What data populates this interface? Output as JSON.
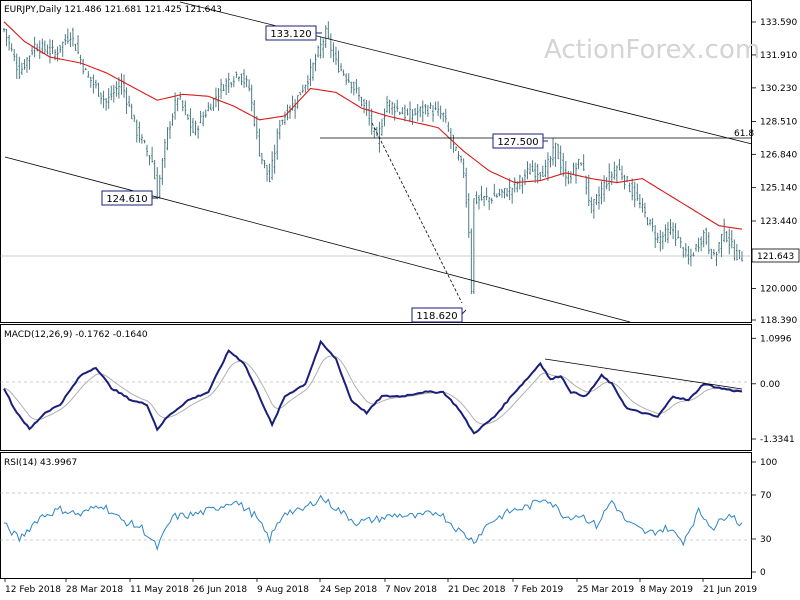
{
  "header": {
    "price": "EURJPY,Daily  121.486 121.681 121.425 121.643",
    "macd": "MACD(12,26,9) -0.1762 -0.1640",
    "rsi": "RSI(14) 43.9967"
  },
  "watermark": "ActionForex.com",
  "colors": {
    "candle": "#3b6f7a",
    "ma": "#d81b1b",
    "macd": "#1a1f7a",
    "signal": "#b0b0b0",
    "rsi": "#2f86c6",
    "trend": "#000000"
  },
  "chart_data": [
    {
      "type": "candlestick",
      "y_axis": {
        "min": 118.39,
        "max": 134.4,
        "ticks": [
          {
            "value": 133.59,
            "label": "133.590"
          },
          {
            "value": 131.91,
            "label": "131.910"
          },
          {
            "value": 130.23,
            "label": "130.230"
          },
          {
            "value": 128.51,
            "label": "128.510"
          },
          {
            "value": 126.84,
            "label": "126.840"
          },
          {
            "value": 125.14,
            "label": "125.140"
          },
          {
            "value": 123.44,
            "label": "123.440"
          },
          {
            "value": 120.0,
            "label": "120.000"
          },
          {
            "value": 118.39,
            "label": "118.390"
          }
        ]
      },
      "x_axis": {
        "labels": [
          "12 Feb 2018",
          "28 Mar 2018",
          "11 May 2018",
          "26 Jun 2018",
          "9 Aug 2018",
          "24 Sep 2018",
          "7 Nov 2018",
          "21 Dec 2018",
          "7 Feb 2019",
          "25 Mar 2019",
          "8 May 2019",
          "21 Jun 2019"
        ]
      },
      "current_price": {
        "value": 121.643,
        "label": "121.643"
      },
      "annotations": [
        {
          "label": "133.120",
          "value": 133.12
        },
        {
          "label": "124.610",
          "value": 124.61
        },
        {
          "label": "118.620",
          "value": 118.62
        },
        {
          "label": "127.500",
          "value": 127.5
        },
        {
          "label": "61.8",
          "value": 127.7
        }
      ],
      "moving_average_path": [
        {
          "i": 0,
          "v": 133.6
        },
        {
          "i": 8,
          "v": 132.6
        },
        {
          "i": 18,
          "v": 131.8
        },
        {
          "i": 30,
          "v": 131.5
        },
        {
          "i": 40,
          "v": 131.0
        },
        {
          "i": 50,
          "v": 130.3
        },
        {
          "i": 60,
          "v": 129.6
        },
        {
          "i": 70,
          "v": 129.9
        },
        {
          "i": 80,
          "v": 129.8
        },
        {
          "i": 90,
          "v": 129.3
        },
        {
          "i": 100,
          "v": 128.6
        },
        {
          "i": 110,
          "v": 128.8
        },
        {
          "i": 120,
          "v": 130.2
        },
        {
          "i": 130,
          "v": 130.0
        },
        {
          "i": 140,
          "v": 129.2
        },
        {
          "i": 150,
          "v": 128.8
        },
        {
          "i": 160,
          "v": 128.5
        },
        {
          "i": 170,
          "v": 128.2
        },
        {
          "i": 180,
          "v": 127.0
        },
        {
          "i": 190,
          "v": 126.0
        },
        {
          "i": 200,
          "v": 125.4
        },
        {
          "i": 210,
          "v": 125.5
        },
        {
          "i": 220,
          "v": 125.9
        },
        {
          "i": 230,
          "v": 125.6
        },
        {
          "i": 240,
          "v": 125.4
        },
        {
          "i": 250,
          "v": 125.6
        },
        {
          "i": 260,
          "v": 124.8
        },
        {
          "i": 270,
          "v": 124.0
        },
        {
          "i": 280,
          "v": 123.2
        },
        {
          "i": 290,
          "v": 123.0
        }
      ]
    },
    {
      "type": "line",
      "name": "MACD(12,26,9)",
      "y_axis": {
        "min": -1.6,
        "max": 1.3,
        "ticks": [
          {
            "value": 1.0996,
            "label": "1.0996"
          },
          {
            "value": 0.0,
            "label": "0.00"
          },
          {
            "value": -1.3341,
            "label": "-1.3341"
          }
        ]
      },
      "macd_path": [
        {
          "i": 0,
          "v": -0.1
        },
        {
          "i": 4,
          "v": -0.6
        },
        {
          "i": 10,
          "v": -1.1
        },
        {
          "i": 16,
          "v": -0.7
        },
        {
          "i": 22,
          "v": -0.5
        },
        {
          "i": 30,
          "v": 0.2
        },
        {
          "i": 36,
          "v": 0.4
        },
        {
          "i": 42,
          "v": -0.1
        },
        {
          "i": 50,
          "v": -0.4
        },
        {
          "i": 56,
          "v": -0.5
        },
        {
          "i": 60,
          "v": -1.1
        },
        {
          "i": 64,
          "v": -0.8
        },
        {
          "i": 72,
          "v": -0.4
        },
        {
          "i": 80,
          "v": -0.2
        },
        {
          "i": 88,
          "v": 0.8
        },
        {
          "i": 94,
          "v": 0.5
        },
        {
          "i": 100,
          "v": -0.3
        },
        {
          "i": 105,
          "v": -1.0
        },
        {
          "i": 110,
          "v": -0.3
        },
        {
          "i": 118,
          "v": 0.0
        },
        {
          "i": 124,
          "v": 1.0
        },
        {
          "i": 130,
          "v": 0.6
        },
        {
          "i": 136,
          "v": -0.4
        },
        {
          "i": 142,
          "v": -0.7
        },
        {
          "i": 148,
          "v": -0.3
        },
        {
          "i": 156,
          "v": -0.3
        },
        {
          "i": 164,
          "v": -0.2
        },
        {
          "i": 172,
          "v": -0.2
        },
        {
          "i": 178,
          "v": -0.6
        },
        {
          "i": 184,
          "v": -1.2
        },
        {
          "i": 192,
          "v": -0.8
        },
        {
          "i": 200,
          "v": -0.2
        },
        {
          "i": 206,
          "v": 0.2
        },
        {
          "i": 210,
          "v": 0.5
        },
        {
          "i": 214,
          "v": 0.1
        },
        {
          "i": 218,
          "v": 0.2
        },
        {
          "i": 222,
          "v": -0.2
        },
        {
          "i": 228,
          "v": -0.3
        },
        {
          "i": 234,
          "v": 0.2
        },
        {
          "i": 238,
          "v": 0.0
        },
        {
          "i": 244,
          "v": -0.6
        },
        {
          "i": 250,
          "v": -0.7
        },
        {
          "i": 256,
          "v": -0.8
        },
        {
          "i": 262,
          "v": -0.3
        },
        {
          "i": 268,
          "v": -0.4
        },
        {
          "i": 274,
          "v": 0.0
        },
        {
          "i": 280,
          "v": -0.1
        },
        {
          "i": 287,
          "v": -0.18
        }
      ]
    },
    {
      "type": "line",
      "name": "RSI(14)",
      "y_axis": {
        "min": 0,
        "max": 100,
        "ticks": [
          {
            "value": 100,
            "label": "100"
          },
          {
            "value": 70,
            "label": "70"
          },
          {
            "value": 30,
            "label": "30"
          },
          {
            "value": 0,
            "label": "0"
          }
        ]
      },
      "rsi_path": [
        {
          "i": 0,
          "v": 43
        },
        {
          "i": 6,
          "v": 30
        },
        {
          "i": 14,
          "v": 50
        },
        {
          "i": 22,
          "v": 57
        },
        {
          "i": 30,
          "v": 52
        },
        {
          "i": 38,
          "v": 62
        },
        {
          "i": 46,
          "v": 47
        },
        {
          "i": 54,
          "v": 40
        },
        {
          "i": 60,
          "v": 22
        },
        {
          "i": 66,
          "v": 50
        },
        {
          "i": 74,
          "v": 52
        },
        {
          "i": 82,
          "v": 57
        },
        {
          "i": 90,
          "v": 65
        },
        {
          "i": 98,
          "v": 52
        },
        {
          "i": 104,
          "v": 30
        },
        {
          "i": 110,
          "v": 55
        },
        {
          "i": 116,
          "v": 55
        },
        {
          "i": 124,
          "v": 68
        },
        {
          "i": 130,
          "v": 58
        },
        {
          "i": 138,
          "v": 45
        },
        {
          "i": 146,
          "v": 48
        },
        {
          "i": 154,
          "v": 52
        },
        {
          "i": 162,
          "v": 50
        },
        {
          "i": 170,
          "v": 55
        },
        {
          "i": 178,
          "v": 38
        },
        {
          "i": 184,
          "v": 28
        },
        {
          "i": 190,
          "v": 45
        },
        {
          "i": 198,
          "v": 55
        },
        {
          "i": 206,
          "v": 60
        },
        {
          "i": 212,
          "v": 68
        },
        {
          "i": 220,
          "v": 50
        },
        {
          "i": 226,
          "v": 52
        },
        {
          "i": 232,
          "v": 42
        },
        {
          "i": 238,
          "v": 65
        },
        {
          "i": 244,
          "v": 45
        },
        {
          "i": 252,
          "v": 35
        },
        {
          "i": 260,
          "v": 40
        },
        {
          "i": 266,
          "v": 28
        },
        {
          "i": 272,
          "v": 55
        },
        {
          "i": 278,
          "v": 40
        },
        {
          "i": 284,
          "v": 55
        },
        {
          "i": 288,
          "v": 44
        }
      ]
    }
  ]
}
